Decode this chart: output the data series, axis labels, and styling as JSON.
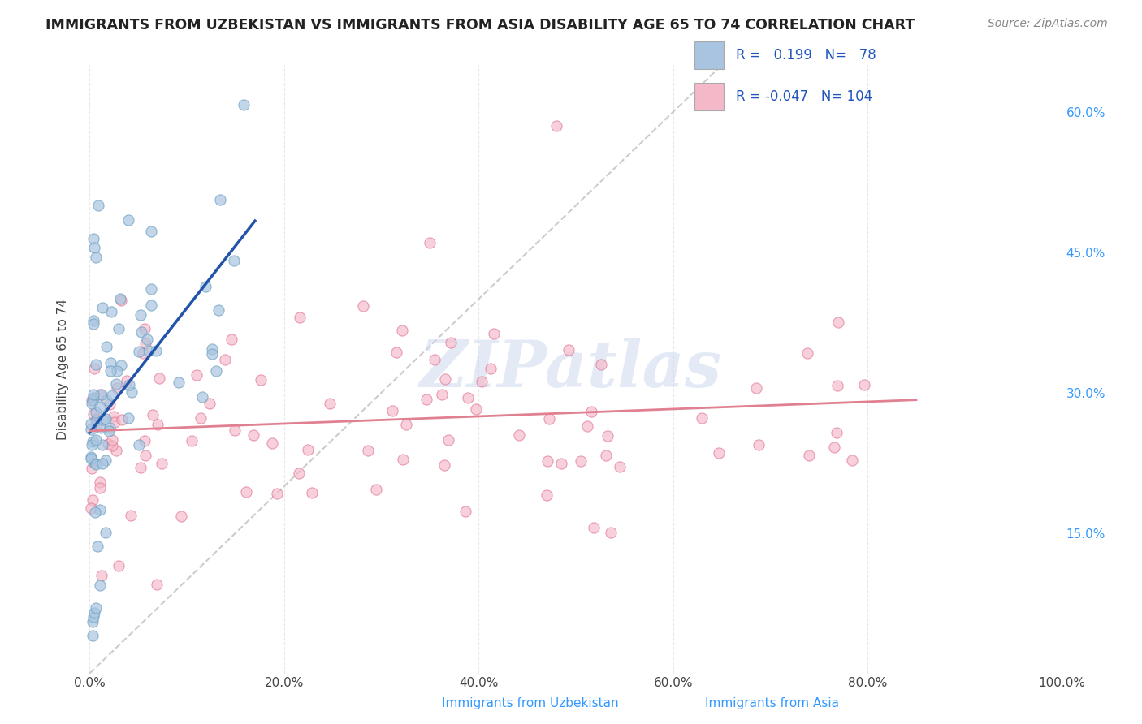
{
  "title": "IMMIGRANTS FROM UZBEKISTAN VS IMMIGRANTS FROM ASIA DISABILITY AGE 65 TO 74 CORRELATION CHART",
  "source_text": "Source: ZipAtlas.com",
  "ylabel": "Disability Age 65 to 74",
  "x_min": -0.01,
  "x_max": 1.0,
  "y_min": 0.0,
  "y_max": 0.65,
  "right_yticks": [
    0.15,
    0.3,
    0.45,
    0.6
  ],
  "right_yticklabels": [
    "15.0%",
    "30.0%",
    "45.0%",
    "60.0%"
  ],
  "x_ticks": [
    0.0,
    0.2,
    0.4,
    0.6,
    0.8,
    1.0
  ],
  "x_ticklabels": [
    "0.0%",
    "20.0%",
    "40.0%",
    "60.0%",
    "80.0%",
    "100.0%"
  ],
  "uzbekistan_color": "#a8c4e0",
  "uzbekistan_edge": "#6a9fc0",
  "asia_color": "#f4b8c8",
  "asia_edge": "#e07090",
  "trend_uzbekistan_color": "#2255aa",
  "trend_asia_color": "#e08090",
  "diag_color": "#c0c0c0",
  "legend_r_uzbekistan": "0.199",
  "legend_n_uzbekistan": "78",
  "legend_r_asia": "-0.047",
  "legend_n_asia": "104",
  "watermark": "ZIPatlas",
  "background_color": "#ffffff",
  "grid_color": "#e8e8e8"
}
